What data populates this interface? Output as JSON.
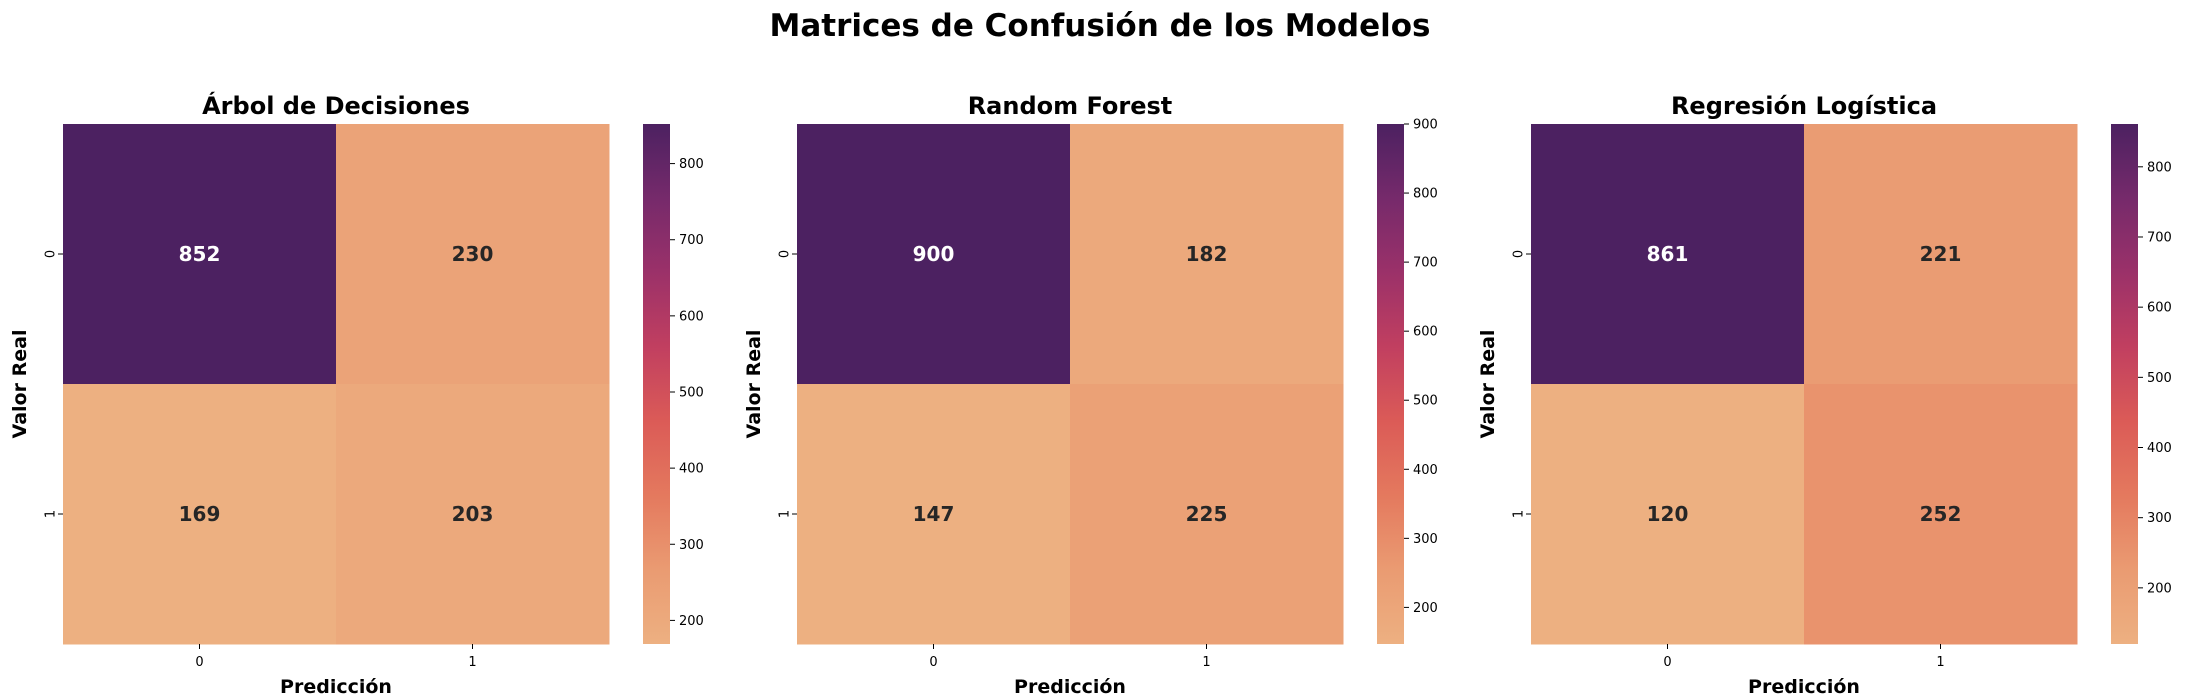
{
  "figure": {
    "title": "Matrices de Confusión de los Modelos"
  },
  "colors": {
    "colormap_flare": [
      "#edb081",
      "#ea9b72",
      "#e4795e",
      "#db5b57",
      "#c13f60",
      "#9b3169",
      "#762a6b",
      "#4c2161"
    ],
    "annot_light": "#ffffff",
    "annot_dark": "#262626"
  },
  "chart_data": [
    {
      "type": "heatmap",
      "title": "Árbol de Decisiones",
      "xlabel": "Predicción",
      "ylabel": "Valor Real",
      "x_ticks": [
        "0",
        "1"
      ],
      "y_ticks": [
        "0",
        "1"
      ],
      "matrix": [
        [
          852,
          230
        ],
        [
          169,
          203
        ]
      ],
      "colorbar": {
        "vmin": 169,
        "vmax": 852,
        "ticks": [
          200,
          300,
          400,
          500,
          600,
          700,
          800
        ]
      }
    },
    {
      "type": "heatmap",
      "title": "Random Forest",
      "xlabel": "Predicción",
      "ylabel": "Valor Real",
      "x_ticks": [
        "0",
        "1"
      ],
      "y_ticks": [
        "0",
        "1"
      ],
      "matrix": [
        [
          900,
          182
        ],
        [
          147,
          225
        ]
      ],
      "colorbar": {
        "vmin": 147,
        "vmax": 900,
        "ticks": [
          200,
          300,
          400,
          500,
          600,
          700,
          800,
          900
        ]
      }
    },
    {
      "type": "heatmap",
      "title": "Regresión Logística",
      "xlabel": "Predicción",
      "ylabel": "Valor Real",
      "x_ticks": [
        "0",
        "1"
      ],
      "y_ticks": [
        "0",
        "1"
      ],
      "matrix": [
        [
          861,
          221
        ],
        [
          120,
          252
        ]
      ],
      "colorbar": {
        "vmin": 120,
        "vmax": 861,
        "ticks": [
          200,
          300,
          400,
          500,
          600,
          700,
          800
        ]
      }
    }
  ]
}
